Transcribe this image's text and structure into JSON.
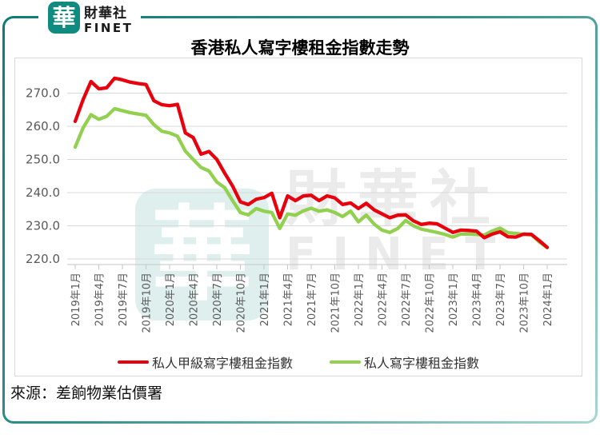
{
  "brand": {
    "logo_char": "華",
    "name_zh": "財華社",
    "name_en": "FINET"
  },
  "title": "香港私人寫字樓租金指數走勢",
  "source": "來源：差餉物業估價署",
  "watermark": {
    "logo_char": "華",
    "text_zh": "財華社",
    "text_en": "FINET"
  },
  "colors": {
    "frame_teal": "#2f8e88",
    "logo_teal": "#0f8b80",
    "grade_a_red": "#e8000d",
    "overall_green": "#92d050",
    "grid": "#d9d9d9",
    "axis": "#c6c6c6",
    "axis_text": "#595959"
  },
  "chart_data": {
    "type": "line",
    "title": "香港私人寫字樓租金指數走勢",
    "x_start": "2019年1月",
    "x_end": "2024年1月",
    "x_frequency": "monthly",
    "x_tick_labels": [
      "2019年1月",
      "2019年4月",
      "2019年7月",
      "2019年10月",
      "2020年1月",
      "2020年4月",
      "2020年7月",
      "2020年10月",
      "2021年1月",
      "2021年4月",
      "2021年7月",
      "2021年10月",
      "2022年1月",
      "2022年4月",
      "2022年7月",
      "2022年10月",
      "2023年1月",
      "2023年4月",
      "2023年7月",
      "2023年10月",
      "2024年1月"
    ],
    "tick_every": 3,
    "yticks": [
      220,
      230,
      240,
      250,
      260,
      270
    ],
    "ylim": [
      218.3,
      277.3
    ],
    "grid": "horizontal",
    "legend_position": "bottom",
    "series": [
      {
        "name": "私人甲級寫字樓租金指數",
        "color": "#e8000d",
        "values": [
          261.5,
          268.0,
          273.5,
          271.3,
          271.6,
          274.5,
          274.0,
          273.3,
          272.9,
          272.6,
          267.7,
          266.5,
          266.2,
          266.6,
          258.0,
          256.6,
          251.6,
          252.4,
          250.0,
          245.9,
          242.0,
          237.2,
          236.4,
          238.0,
          238.5,
          239.8,
          232.4,
          239.0,
          237.6,
          239.0,
          239.2,
          237.6,
          239.0,
          238.4,
          236.4,
          236.9,
          235.2,
          236.8,
          234.8,
          233.6,
          232.4,
          233.2,
          233.3,
          231.5,
          230.4,
          230.8,
          230.6,
          229.3,
          228.0,
          228.7,
          228.6,
          228.4,
          226.4,
          227.5,
          228.2,
          226.7,
          226.6,
          227.5,
          227.4,
          225.5,
          223.5
        ]
      },
      {
        "name": "私人寫字樓租金指數",
        "color": "#92d050",
        "values": [
          253.7,
          259.5,
          263.5,
          262.1,
          263.0,
          265.3,
          264.7,
          264.1,
          263.7,
          263.3,
          260.5,
          258.5,
          258.0,
          257.0,
          252.5,
          250.0,
          247.6,
          246.5,
          243.2,
          241.5,
          237.6,
          234.0,
          233.3,
          235.2,
          234.4,
          234.0,
          229.2,
          233.6,
          233.2,
          234.5,
          235.3,
          234.4,
          234.8,
          234.0,
          232.8,
          234.4,
          231.2,
          233.2,
          230.5,
          228.7,
          228.0,
          229.2,
          231.6,
          230.0,
          229.0,
          228.5,
          228.0,
          227.4,
          226.6,
          227.5,
          227.5,
          227.4,
          227.2,
          228.4,
          229.3,
          227.9,
          227.7,
          227.4,
          227.3,
          225.1,
          223.4
        ]
      }
    ]
  }
}
